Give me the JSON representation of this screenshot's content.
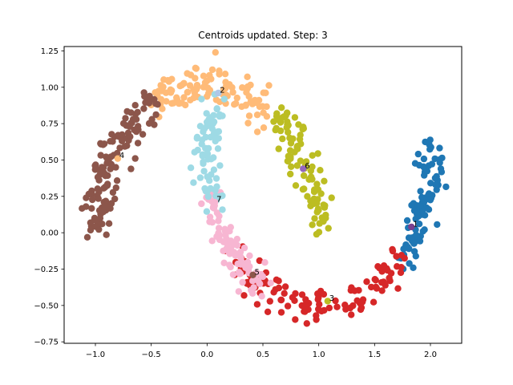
{
  "chart_data": {
    "type": "scatter",
    "title": "Centroids updated. Step: 3",
    "xlabel": "",
    "ylabel": "",
    "xlim": [
      -1.28,
      2.28
    ],
    "ylim": [
      -0.76,
      1.28
    ],
    "xticks": [
      -1.0,
      -0.5,
      0.0,
      0.5,
      1.0,
      1.5,
      2.0
    ],
    "xtick_labels": [
      "−1.0",
      "−0.5",
      "0.0",
      "0.5",
      "1.0",
      "1.5",
      "2.0"
    ],
    "yticks": [
      -0.75,
      -0.5,
      -0.25,
      0.0,
      0.25,
      0.5,
      0.75,
      1.0,
      1.25
    ],
    "ytick_labels": [
      "−0.75",
      "−0.50",
      "−0.25",
      "0.00",
      "0.25",
      "0.50",
      "0.75",
      "1.00",
      "1.25"
    ],
    "grid": false,
    "clusters": [
      {
        "label": "1",
        "color": "#1f77b4",
        "centroid": [
          1.83,
          0.04
        ],
        "centroid_color": "#7b3f8f",
        "arc": {
          "center": [
            1.0,
            0.5
          ],
          "r": 1.0,
          "a0": 315,
          "a1": 365
        },
        "n": 95,
        "spread": 0.08
      },
      {
        "label": "2",
        "color": "#ffbb78",
        "centroid": [
          0.1,
          0.96
        ],
        "centroid_color": "#aec7e8",
        "arc": {
          "center": [
            0.0,
            0.0
          ],
          "r": 1.0,
          "a0": 58,
          "a1": 115
        },
        "n": 110,
        "spread": 0.08
      },
      {
        "label": "3",
        "color": "#d62728",
        "centroid": [
          1.08,
          -0.47
        ],
        "centroid_color": "#bcbd22",
        "arc": {
          "center": [
            1.0,
            0.5
          ],
          "r": 1.0,
          "a0": 222,
          "a1": 318
        },
        "n": 115,
        "spread": 0.075
      },
      {
        "label": "4",
        "color": "#8c564b",
        "centroid": [
          -0.8,
          0.51
        ],
        "centroid_color": "#ffbb78",
        "arc": {
          "center": [
            0.0,
            0.0
          ],
          "r": 1.0,
          "a0": 117,
          "a1": 178
        },
        "n": 130,
        "spread": 0.08
      },
      {
        "label": "5",
        "color": "#f7b6d2",
        "centroid": [
          0.41,
          -0.29
        ],
        "centroid_color": "#8c564b",
        "arc": {
          "center": [
            1.0,
            0.5
          ],
          "r": 1.0,
          "a0": 193,
          "a1": 238
        },
        "n": 85,
        "spread": 0.07
      },
      {
        "label": "6",
        "color": "#bcbd22",
        "centroid": [
          0.86,
          0.44
        ],
        "centroid_color": "#9467bd",
        "arc": {
          "center": [
            0.0,
            0.0
          ],
          "r": 1.0,
          "a0": 0,
          "a1": 52
        },
        "n": 95,
        "spread": 0.08
      },
      {
        "label": "7",
        "color": "#9edae5",
        "centroid": [
          0.07,
          0.21
        ],
        "centroid_color": "#f7b6d2",
        "arc": {
          "center": [
            1.0,
            0.5
          ],
          "r": 1.0,
          "a0": 155,
          "a1": 196
        },
        "n": 75,
        "spread": 0.075
      }
    ]
  }
}
